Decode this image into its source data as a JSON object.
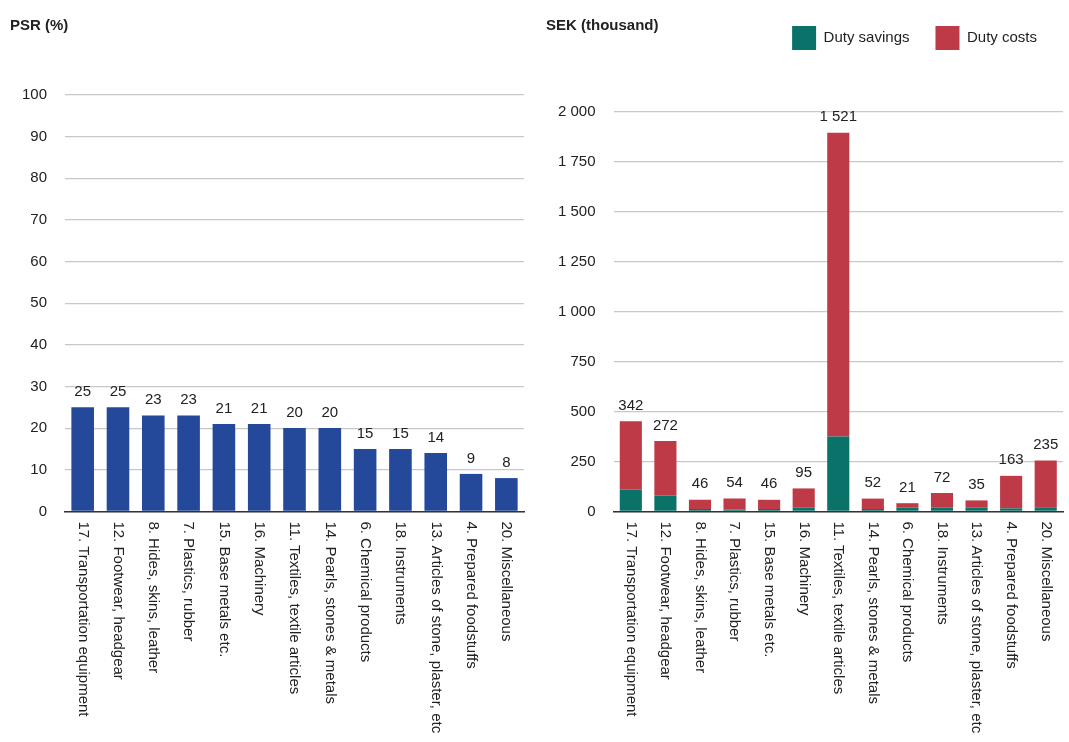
{
  "chart_data": [
    {
      "type": "bar",
      "ylabel": "PSR (%)",
      "categories": [
        "17. Transportation equipment",
        "12. Footwear, headgear",
        "8. Hides, skins, leather",
        "7. Plastics, rubber",
        "15. Base metals etc.",
        "16. Machinery",
        "11. Textiles, textile articles",
        "14. Pearls, stones & metals",
        "6. Chemical products",
        "18. Instruments",
        "13. Articles of stone, plaster, etc",
        "4. Prepared foodstuffs",
        "20. Miscellaneous"
      ],
      "values": [
        25,
        25,
        23,
        23,
        21,
        21,
        20,
        20,
        15,
        15,
        14,
        9,
        8
      ],
      "color": "#24489a",
      "ylim": [
        0,
        100
      ],
      "yticks": [
        0,
        10,
        20,
        30,
        40,
        50,
        60,
        70,
        80,
        90,
        100
      ],
      "grid": "y",
      "data_labels": true,
      "legend": false
    },
    {
      "type": "bar",
      "ylabel": "SEK (thousand)",
      "categories": [
        "17. Transportation equipment",
        "12. Footwear, headgear",
        "8. Hides, skins, leather",
        "7. Plastics, rubber",
        "15. Base metals etc.",
        "16. Machinery",
        "11. Textiles, textile articles",
        "14. Pearls, stones & metals",
        "6. Chemical products",
        "18. Instruments",
        "13. Articles of stone, plaster, etc",
        "4. Prepared foodstuffs",
        "20. Miscellaneous"
      ],
      "stacked": true,
      "series": [
        {
          "name": "Duty savings",
          "color": "#0a7268",
          "values": [
            110,
            80,
            12,
            10,
            12,
            20,
            375,
            12,
            20,
            20,
            20,
            15,
            20
          ]
        },
        {
          "name": "Duty costs",
          "color": "#bf3a47",
          "values": [
            342,
            272,
            46,
            54,
            46,
            95,
            1521,
            52,
            21,
            72,
            35,
            163,
            235
          ],
          "value_labels": [
            "342",
            "272",
            "46",
            "54",
            "46",
            "95",
            "1 521",
            "52",
            "21",
            "72",
            "35",
            "163",
            "235"
          ]
        }
      ],
      "ylim": [
        0,
        2000
      ],
      "yticks": [
        0,
        250,
        500,
        750,
        {
          "value": 1000,
          "label": "1 000"
        },
        {
          "value": 1250,
          "label": "1 250"
        },
        {
          "value": 1500,
          "label": "1 500"
        },
        {
          "value": 1750,
          "label": "1 750"
        },
        {
          "value": 2000,
          "label": "2 000"
        }
      ],
      "grid": "y",
      "legend": "top right"
    }
  ]
}
